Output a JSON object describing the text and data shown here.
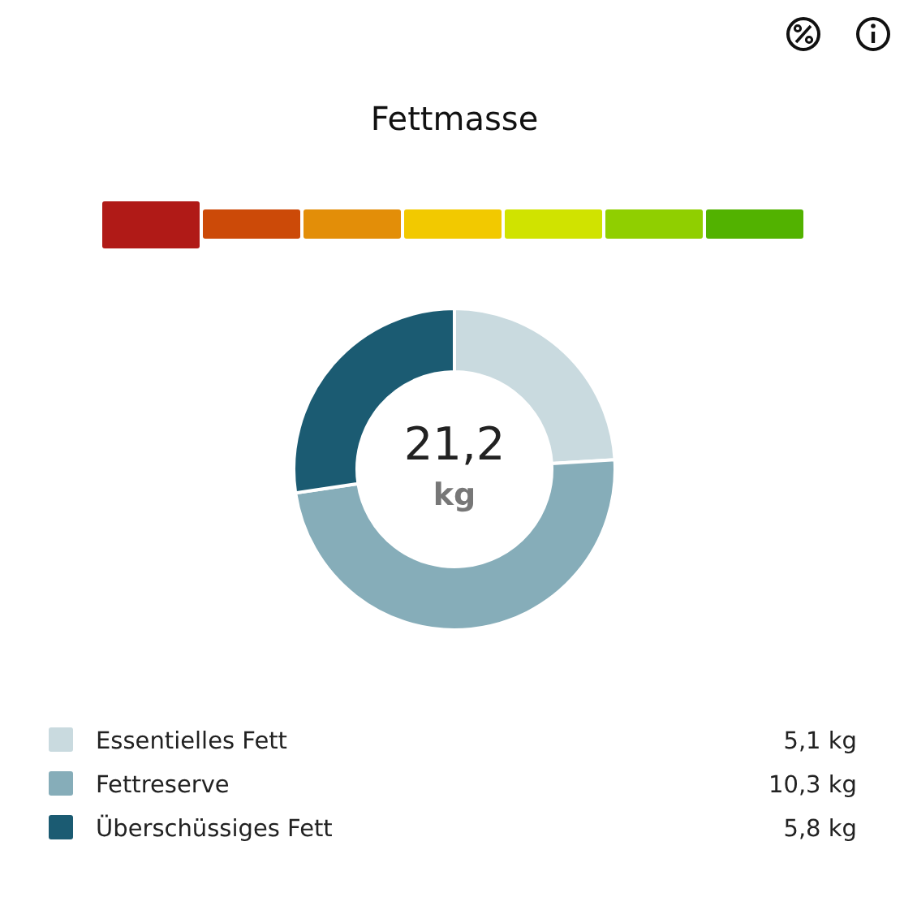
{
  "chart_data": {
    "type": "donut",
    "title": "Fettmasse",
    "categories": [
      "Essentielles Fett",
      "Fettreserve",
      "Überschüssiges Fett"
    ],
    "values": [
      5.1,
      10.3,
      5.8
    ],
    "colors": [
      "#c9dadf",
      "#86adb9",
      "#1b5b72"
    ],
    "value_labels": [
      "5,1 kg",
      "10,3 kg",
      "5,8 kg"
    ],
    "annotations": [
      "21,2",
      "kg"
    ],
    "legend": "bottom"
  }
}
